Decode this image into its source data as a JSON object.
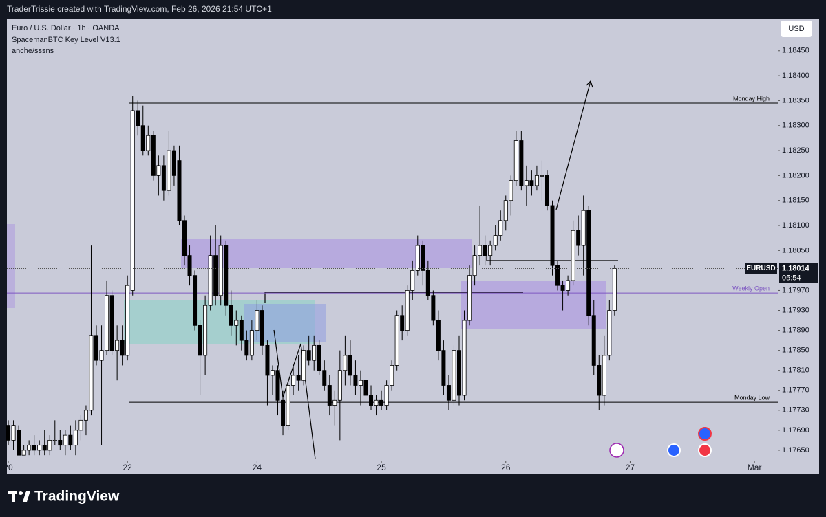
{
  "header": {
    "credit": "TraderTrissie created with TradingView.com, Feb 26, 2026 21:54 UTC+1"
  },
  "legend_lines": [
    "Euro / U.S. Dollar · 1h · OANDA",
    "SpacemanBTC Key Level V13.1",
    "anche/sssns"
  ],
  "currency_button": "USD",
  "footer": {
    "brand": "TradingView"
  },
  "chart_data": {
    "type": "candlestick",
    "symbol": "EURUSD",
    "countdown": "05:54",
    "up_color": "#ffffff",
    "down_color": "#000000",
    "ylim": [
      1.17632,
      1.18513
    ],
    "yticks": [
      {
        "value": 1.1845,
        "label": "1.18450"
      },
      {
        "value": 1.184,
        "label": "1.18400"
      },
      {
        "value": 1.1835,
        "label": "1.18350"
      },
      {
        "value": 1.183,
        "label": "1.18300"
      },
      {
        "value": 1.1825,
        "label": "1.18250"
      },
      {
        "value": 1.182,
        "label": "1.18200"
      },
      {
        "value": 1.1815,
        "label": "1.18150"
      },
      {
        "value": 1.181,
        "label": "1.18100"
      },
      {
        "value": 1.1805,
        "label": "1.18050"
      },
      {
        "value": 1.1797,
        "label": "1.17970"
      },
      {
        "value": 1.1793,
        "label": "1.17930"
      },
      {
        "value": 1.1789,
        "label": "1.17890"
      },
      {
        "value": 1.1785,
        "label": "1.17850"
      },
      {
        "value": 1.1781,
        "label": "1.17810"
      },
      {
        "value": 1.1777,
        "label": "1.17770"
      },
      {
        "value": 1.1773,
        "label": "1.17730"
      },
      {
        "value": 1.1769,
        "label": "1.17690"
      },
      {
        "value": 1.1765,
        "label": "1.17650"
      }
    ],
    "xlim": [
      -0.27,
      148.5
    ],
    "xticks": [
      {
        "value": 0,
        "label": "20"
      },
      {
        "value": 23,
        "label": "22"
      },
      {
        "value": 48,
        "label": "24"
      },
      {
        "value": 72,
        "label": "25"
      },
      {
        "value": 96,
        "label": "26"
      },
      {
        "value": 120,
        "label": "27"
      },
      {
        "value": 144,
        "label": "Mar"
      }
    ],
    "levels": [
      {
        "text": "Monday High",
        "value": 1.18345,
        "color": "#000000"
      },
      {
        "text": "Weekly Open",
        "value": 1.17965,
        "color": "#7e57c2"
      },
      {
        "text": "Monday Low",
        "value": 1.17746,
        "color": "#000000"
      }
    ],
    "ohlc": [
      [
        1.177,
        1.1771,
        1.1766,
        1.1767
      ],
      [
        1.1767,
        1.1771,
        1.1765,
        1.177
      ],
      [
        1.1769,
        1.177,
        1.1764,
        1.1764
      ],
      [
        1.1764,
        1.1766,
        1.1764,
        1.1765
      ],
      [
        1.1765,
        1.1767,
        1.1764,
        1.1766
      ],
      [
        1.1766,
        1.1768,
        1.1764,
        1.1765
      ],
      [
        1.1765,
        1.1767,
        1.1764,
        1.1766
      ],
      [
        1.1766,
        1.1769,
        1.1764,
        1.1765
      ],
      [
        1.1765,
        1.1768,
        1.1764,
        1.1767
      ],
      [
        1.1767,
        1.1771,
        1.1766,
        1.1767
      ],
      [
        1.1767,
        1.1769,
        1.1765,
        1.1766
      ],
      [
        1.1766,
        1.1769,
        1.1764,
        1.1768
      ],
      [
        1.1768,
        1.177,
        1.1765,
        1.1766
      ],
      [
        1.1766,
        1.1771,
        1.1764,
        1.1769
      ],
      [
        1.1769,
        1.1772,
        1.1767,
        1.1771
      ],
      [
        1.1771,
        1.1774,
        1.1768,
        1.1773
      ],
      [
        1.1773,
        1.1806,
        1.1772,
        1.1788
      ],
      [
        1.1788,
        1.179,
        1.1782,
        1.1783
      ],
      [
        1.1783,
        1.179,
        1.1766,
        1.1785
      ],
      [
        1.1785,
        1.1799,
        1.1784,
        1.1796
      ],
      [
        1.1796,
        1.1797,
        1.1784,
        1.1785
      ],
      [
        1.1785,
        1.179,
        1.1779,
        1.1787
      ],
      [
        1.1787,
        1.179,
        1.1782,
        1.1784
      ],
      [
        1.1784,
        1.18,
        1.1783,
        1.1798
      ],
      [
        1.1797,
        1.1836,
        1.1796,
        1.1833
      ],
      [
        1.1833,
        1.1835,
        1.1828,
        1.183
      ],
      [
        1.183,
        1.1834,
        1.1824,
        1.1825
      ],
      [
        1.1825,
        1.183,
        1.1824,
        1.1828
      ],
      [
        1.1828,
        1.1829,
        1.1819,
        1.182
      ],
      [
        1.182,
        1.1824,
        1.1816,
        1.1822
      ],
      [
        1.1822,
        1.1824,
        1.1815,
        1.1817
      ],
      [
        1.1817,
        1.1829,
        1.1816,
        1.1825
      ],
      [
        1.1825,
        1.1826,
        1.1818,
        1.182
      ],
      [
        1.1823,
        1.1826,
        1.181,
        1.1811
      ],
      [
        1.1811,
        1.1812,
        1.1802,
        1.1804
      ],
      [
        1.1804,
        1.1806,
        1.1798,
        1.18
      ],
      [
        1.18,
        1.1801,
        1.1789,
        1.179
      ],
      [
        1.179,
        1.1791,
        1.1776,
        1.1784
      ],
      [
        1.1784,
        1.1796,
        1.178,
        1.1794
      ],
      [
        1.1794,
        1.1808,
        1.1793,
        1.1804
      ],
      [
        1.1804,
        1.181,
        1.1794,
        1.1796
      ],
      [
        1.1796,
        1.1808,
        1.1794,
        1.1806
      ],
      [
        1.1806,
        1.1807,
        1.1792,
        1.1794
      ],
      [
        1.1794,
        1.1797,
        1.1788,
        1.179
      ],
      [
        1.179,
        1.1793,
        1.1786,
        1.1791
      ],
      [
        1.1791,
        1.1792,
        1.1785,
        1.1787
      ],
      [
        1.1787,
        1.1789,
        1.1783,
        1.1784
      ],
      [
        1.1784,
        1.1791,
        1.1783,
        1.1789
      ],
      [
        1.1789,
        1.1795,
        1.1787,
        1.1793
      ],
      [
        1.1793,
        1.1794,
        1.1784,
        1.1786
      ],
      [
        1.1786,
        1.1787,
        1.1774,
        1.178
      ],
      [
        1.178,
        1.1782,
        1.1776,
        1.1781
      ],
      [
        1.1781,
        1.1782,
        1.1772,
        1.1775
      ],
      [
        1.1775,
        1.1777,
        1.1768,
        1.177
      ],
      [
        1.177,
        1.1779,
        1.1769,
        1.1778
      ],
      [
        1.1778,
        1.1782,
        1.1776,
        1.178
      ],
      [
        1.178,
        1.1784,
        1.1777,
        1.1779
      ],
      [
        1.1779,
        1.1786,
        1.1778,
        1.1785
      ],
      [
        1.1785,
        1.1788,
        1.1782,
        1.1783
      ],
      [
        1.1783,
        1.1788,
        1.1781,
        1.1786
      ],
      [
        1.1786,
        1.1787,
        1.178,
        1.1781
      ],
      [
        1.1781,
        1.1783,
        1.1777,
        1.1778
      ],
      [
        1.1778,
        1.178,
        1.1772,
        1.1774
      ],
      [
        1.1774,
        1.1777,
        1.177,
        1.1775
      ],
      [
        1.1775,
        1.1785,
        1.1767,
        1.1781
      ],
      [
        1.1781,
        1.1788,
        1.1778,
        1.1784
      ],
      [
        1.1784,
        1.1787,
        1.1778,
        1.178
      ],
      [
        1.178,
        1.1783,
        1.1776,
        1.1778
      ],
      [
        1.1778,
        1.1781,
        1.1774,
        1.1779
      ],
      [
        1.1779,
        1.1782,
        1.1775,
        1.1776
      ],
      [
        1.1776,
        1.1778,
        1.1773,
        1.1774
      ],
      [
        1.1774,
        1.1776,
        1.1772,
        1.1775
      ],
      [
        1.1775,
        1.1777,
        1.1773,
        1.1774
      ],
      [
        1.1774,
        1.1779,
        1.1773,
        1.1778
      ],
      [
        1.1778,
        1.1783,
        1.1777,
        1.1782
      ],
      [
        1.1782,
        1.1793,
        1.1781,
        1.1792
      ],
      [
        1.1792,
        1.1794,
        1.1787,
        1.1789
      ],
      [
        1.1789,
        1.1798,
        1.1788,
        1.1797
      ],
      [
        1.1797,
        1.1803,
        1.1795,
        1.1801
      ],
      [
        1.1801,
        1.1808,
        1.18,
        1.1806
      ],
      [
        1.1806,
        1.1807,
        1.1798,
        1.1801
      ],
      [
        1.1801,
        1.1803,
        1.1795,
        1.1796
      ],
      [
        1.1796,
        1.1797,
        1.179,
        1.1791
      ],
      [
        1.1791,
        1.1793,
        1.1783,
        1.1785
      ],
      [
        1.1785,
        1.1787,
        1.1776,
        1.1778
      ],
      [
        1.1778,
        1.178,
        1.1773,
        1.1775
      ],
      [
        1.1775,
        1.1786,
        1.1774,
        1.1785
      ],
      [
        1.1785,
        1.1788,
        1.1774,
        1.1776
      ],
      [
        1.1776,
        1.1793,
        1.1775,
        1.1791
      ],
      [
        1.1791,
        1.1802,
        1.179,
        1.18
      ],
      [
        1.18,
        1.1806,
        1.1798,
        1.1804
      ],
      [
        1.1804,
        1.1814,
        1.1802,
        1.1806
      ],
      [
        1.1806,
        1.1808,
        1.1802,
        1.1804
      ],
      [
        1.1804,
        1.1807,
        1.1802,
        1.1806
      ],
      [
        1.1806,
        1.181,
        1.1805,
        1.1808
      ],
      [
        1.1808,
        1.1813,
        1.1807,
        1.1811
      ],
      [
        1.1811,
        1.1816,
        1.1809,
        1.1815
      ],
      [
        1.1815,
        1.182,
        1.1812,
        1.1819
      ],
      [
        1.1819,
        1.1829,
        1.1818,
        1.1827
      ],
      [
        1.1827,
        1.1829,
        1.1817,
        1.1818
      ],
      [
        1.1818,
        1.1822,
        1.1814,
        1.1819
      ],
      [
        1.1819,
        1.1821,
        1.1816,
        1.1818
      ],
      [
        1.1818,
        1.1822,
        1.1817,
        1.182
      ],
      [
        1.182,
        1.1823,
        1.1815,
        1.182
      ],
      [
        1.182,
        1.1821,
        1.1813,
        1.1814
      ],
      [
        1.1814,
        1.1815,
        1.18,
        1.1802
      ],
      [
        1.1802,
        1.1803,
        1.1797,
        1.1798
      ],
      [
        1.1798,
        1.1799,
        1.1793,
        1.1797
      ],
      [
        1.1797,
        1.18,
        1.1796,
        1.1799
      ],
      [
        1.1799,
        1.1811,
        1.1798,
        1.1809
      ],
      [
        1.1809,
        1.1812,
        1.1804,
        1.1806
      ],
      [
        1.1806,
        1.1816,
        1.18,
        1.1813
      ],
      [
        1.1813,
        1.1814,
        1.179,
        1.1792
      ],
      [
        1.1792,
        1.1795,
        1.178,
        1.1782
      ],
      [
        1.1782,
        1.1784,
        1.1773,
        1.1776
      ],
      [
        1.1776,
        1.1788,
        1.1774,
        1.1784
      ],
      [
        1.1784,
        1.1795,
        1.1783,
        1.1793
      ],
      [
        1.1793,
        1.1802,
        1.1792,
        1.18014
      ]
    ]
  }
}
